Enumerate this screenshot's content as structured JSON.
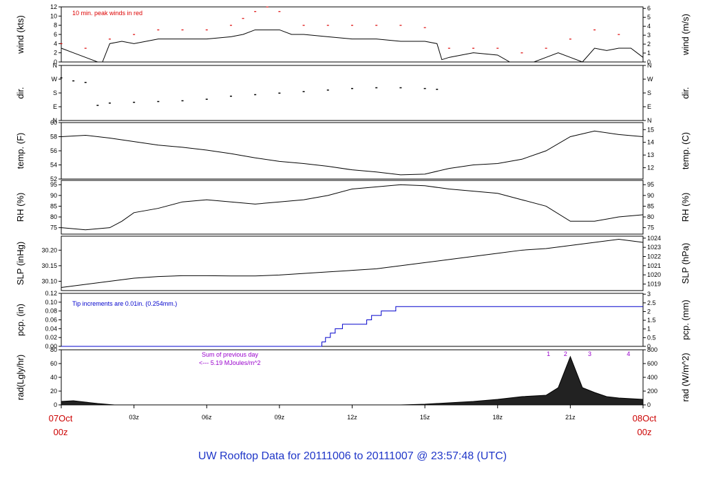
{
  "title": "UW Rooftop Data for 20111006  to  20111007 @ 23:57:48  (UTC)",
  "x_ticks": [
    "03z",
    "06z",
    "09z",
    "12z",
    "15z",
    "18z",
    "21z"
  ],
  "x_start": {
    "day": "07Oct",
    "hour": "00z"
  },
  "x_end": {
    "day": "08Oct",
    "hour": "00z"
  },
  "colors": {
    "peak": "#dd0000",
    "tip": "#0000cc",
    "note": "#9900cc",
    "frame": "#000000"
  },
  "chart_data": [
    {
      "id": "wind",
      "type": "line",
      "ylabel_left": "wind (kts)",
      "ylabel_right": "wind (m/s)",
      "yticks_left": [
        "0",
        "2",
        "4",
        "6",
        "8",
        "10",
        "12"
      ],
      "yticks_right": [
        "0",
        "1",
        "2",
        "3",
        "4",
        "5",
        "6"
      ],
      "ylim": [
        0,
        12
      ],
      "annotation": "10 min. peak winds in red",
      "series": [
        {
          "values_x_hours": [
            0,
            0.5,
            1,
            1.5,
            1.7,
            2,
            2.5,
            3,
            3.5,
            4,
            5,
            6,
            7,
            7.5,
            8,
            8.5,
            9,
            9.5,
            10,
            11,
            12,
            13,
            14,
            15,
            15.5,
            15.7,
            16,
            17,
            18,
            18.5,
            19,
            19.5,
            20,
            20.5,
            21,
            21.5,
            22,
            22.5,
            23,
            23.5,
            24
          ],
          "values_y_kts": [
            3,
            2,
            1,
            0,
            0,
            4,
            4.5,
            4,
            4.5,
            5,
            5,
            5,
            5.5,
            6,
            7,
            7,
            7,
            6,
            6,
            5.5,
            5,
            5,
            4.5,
            4.5,
            4,
            0.5,
            1,
            2,
            1.5,
            0,
            0,
            0,
            1,
            2,
            1,
            0,
            3,
            2.5,
            3,
            3,
            1
          ]
        },
        {
          "peak_x_hours": [
            0,
            1,
            2,
            3,
            4,
            5,
            6,
            7,
            7.5,
            8,
            8.5,
            9,
            10,
            11,
            12,
            13,
            14,
            15,
            16,
            17,
            18,
            19,
            20,
            21,
            22,
            23
          ],
          "peak_y_kts": [
            4,
            3,
            5,
            6,
            7,
            7,
            7,
            8,
            9.5,
            11,
            12,
            11,
            8,
            8,
            8,
            8,
            8,
            7.5,
            3,
            3,
            3,
            2,
            3,
            5,
            7,
            6
          ]
        }
      ]
    },
    {
      "id": "dir",
      "type": "scatter",
      "ylabel_left": "dir.",
      "ylabel_right": "dir.",
      "yticks_left": [
        "N",
        "E",
        "S",
        "W",
        "N"
      ],
      "yticks_right": [
        "N",
        "E",
        "S",
        "W",
        "N"
      ],
      "ylim": [
        0,
        360
      ],
      "values_x_hours": [
        0,
        0.5,
        1,
        1.5,
        2,
        3,
        4,
        5,
        6,
        7,
        8,
        9,
        10,
        11,
        12,
        13,
        14,
        15,
        15.5
      ],
      "values_deg": [
        280,
        260,
        250,
        100,
        115,
        120,
        125,
        130,
        140,
        160,
        170,
        180,
        190,
        200,
        210,
        215,
        215,
        210,
        205
      ]
    },
    {
      "id": "temp",
      "type": "line",
      "ylabel_left": "temp. (F)",
      "ylabel_right": "temp. (C)",
      "yticks_left": [
        "52",
        "54",
        "56",
        "58",
        "60"
      ],
      "yticks_right": [
        "12",
        "13",
        "14",
        "15"
      ],
      "ylim": [
        52,
        60
      ],
      "values_x_hours": [
        0,
        1,
        2,
        3,
        4,
        5,
        6,
        7,
        8,
        9,
        10,
        11,
        12,
        13,
        14,
        15,
        16,
        17,
        18,
        19,
        20,
        21,
        22,
        23,
        24
      ],
      "values_y": [
        58,
        58.2,
        57.8,
        57.3,
        56.8,
        56.5,
        56.1,
        55.6,
        55,
        54.5,
        54.2,
        53.8,
        53.3,
        53,
        52.6,
        52.7,
        53.5,
        54,
        54.2,
        54.8,
        56,
        58,
        58.8,
        58.3,
        58
      ]
    },
    {
      "id": "rh",
      "type": "line",
      "ylabel_left": "RH (%)",
      "ylabel_right": "RH (%)",
      "yticks_left": [
        "75",
        "80",
        "85",
        "90",
        "95"
      ],
      "yticks_right": [
        "75",
        "80",
        "85",
        "90",
        "95"
      ],
      "ylim": [
        72,
        97
      ],
      "values_x_hours": [
        0,
        1,
        2,
        2.5,
        3,
        4,
        5,
        6,
        7,
        8,
        9,
        10,
        11,
        12,
        13,
        14,
        15,
        16,
        17,
        18,
        19,
        20,
        21,
        22,
        23,
        24
      ],
      "values_y": [
        75,
        74,
        75,
        78,
        82,
        84,
        87,
        88,
        87,
        86,
        87,
        88,
        90,
        93,
        94,
        95,
        94.5,
        93,
        92,
        91,
        88,
        85,
        78,
        78,
        80,
        81
      ]
    },
    {
      "id": "slp",
      "type": "line",
      "ylabel_left": "SLP (inHg)",
      "ylabel_right": "SLP (hPa)",
      "yticks_left": [
        "30.10",
        "30.15",
        "30.20"
      ],
      "yticks_right": [
        "1019",
        "1020",
        "1021",
        "1022",
        "1023",
        "1024"
      ],
      "ylim": [
        30.07,
        30.245
      ],
      "values_x_hours": [
        0,
        1,
        2,
        3,
        4,
        5,
        6,
        7,
        8,
        9,
        10,
        11,
        12,
        13,
        14,
        15,
        16,
        17,
        18,
        19,
        20,
        21,
        22,
        23,
        24
      ],
      "values_y": [
        30.08,
        30.09,
        30.1,
        30.11,
        30.115,
        30.118,
        30.118,
        30.117,
        30.117,
        30.12,
        30.125,
        30.13,
        30.135,
        30.14,
        30.15,
        30.16,
        30.17,
        30.18,
        30.19,
        30.2,
        30.205,
        30.215,
        30.225,
        30.235,
        30.225
      ]
    },
    {
      "id": "pcp",
      "type": "line",
      "ylabel_left": "pcp. (in)",
      "ylabel_right": "pcp. (mm)",
      "yticks_left": [
        "0.00",
        "0.02",
        "0.04",
        "0.06",
        "0.08",
        "0.10",
        "0.12"
      ],
      "yticks_right": [
        "0",
        "0.5",
        "1",
        "1.5",
        "2",
        "2.5",
        "3"
      ],
      "ylim": [
        0,
        0.12
      ],
      "annotation": "Tip increments are 0.01in. (0.254mm.)",
      "values_x_hours": [
        0,
        10.75,
        10.9,
        11.1,
        11.3,
        11.6,
        12.6,
        12.8,
        13.2,
        13.8,
        14.3,
        14.8,
        24
      ],
      "values_y": [
        0,
        0.01,
        0.02,
        0.03,
        0.04,
        0.05,
        0.06,
        0.07,
        0.08,
        0.09,
        0.09,
        0.09,
        0.09
      ]
    },
    {
      "id": "rad",
      "type": "area",
      "ylabel_left": "rad(Lgly/hr)",
      "ylabel_right": "rad (W/m^2)",
      "yticks_left": [
        "0",
        "20",
        "40",
        "60",
        "80"
      ],
      "yticks_right": [
        "0",
        "200",
        "400",
        "600",
        "800"
      ],
      "ylim": [
        0,
        80
      ],
      "annotation_1": "Sum of previous day",
      "annotation_2": "<--- 5.19 MJoules/m^2",
      "markers": [
        "1",
        "2",
        "3",
        "4"
      ],
      "values_x_hours": [
        0,
        0.5,
        1,
        1.5,
        2,
        2.2,
        14,
        15,
        16,
        17,
        18,
        19,
        20,
        20.5,
        21,
        21.5,
        22,
        22.5,
        23,
        24
      ],
      "values_y": [
        5,
        6,
        4,
        2,
        0.5,
        0,
        0,
        1,
        3,
        5,
        8,
        12,
        14,
        25,
        70,
        25,
        18,
        12,
        10,
        8
      ]
    }
  ]
}
